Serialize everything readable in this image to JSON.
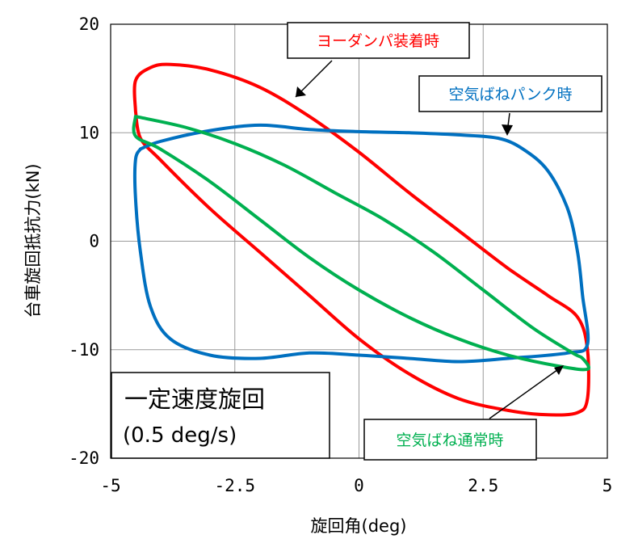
{
  "chart_data": {
    "type": "line",
    "xlabel": "旋回角(deg)",
    "ylabel": "台車旋回抵抗力(kN)",
    "xlim": [
      -5,
      5
    ],
    "ylim": [
      -20,
      20
    ],
    "x_ticks": [
      "-5",
      "-2.5",
      "0",
      "2.5",
      "5"
    ],
    "y_ticks": [
      "20",
      "10",
      "0",
      "-10",
      "-20"
    ],
    "grid": true,
    "condition_box": {
      "title": "一定速度旋回",
      "subtitle": "(0.5 deg/s)"
    },
    "series": [
      {
        "name": "ヨーダンパ装着時",
        "color": "#ff0000",
        "points": [
          [
            -4.5,
            12
          ],
          [
            -4.5,
            14.8
          ],
          [
            -4.2,
            16
          ],
          [
            -3.8,
            16.3
          ],
          [
            -3.0,
            15.8
          ],
          [
            -2.0,
            14.2
          ],
          [
            -1.0,
            11.5
          ],
          [
            0.0,
            8.2
          ],
          [
            1.0,
            4.5
          ],
          [
            2.0,
            1.0
          ],
          [
            3.0,
            -2.5
          ],
          [
            3.8,
            -5.0
          ],
          [
            4.4,
            -7.0
          ],
          [
            4.6,
            -10.0
          ],
          [
            4.6,
            -14.5
          ],
          [
            4.4,
            -15.8
          ],
          [
            3.8,
            -16.0
          ],
          [
            3.0,
            -15.6
          ],
          [
            2.0,
            -14.5
          ],
          [
            1.0,
            -12.2
          ],
          [
            0.0,
            -9.0
          ],
          [
            -1.0,
            -5.0
          ],
          [
            -2.0,
            -1.0
          ],
          [
            -3.0,
            3.0
          ],
          [
            -4.0,
            7.5
          ],
          [
            -4.4,
            9.5
          ],
          [
            -4.5,
            12
          ]
        ]
      },
      {
        "name": "空気ばねパンク時",
        "color": "#0070c0",
        "points": [
          [
            -4.4,
            8.5
          ],
          [
            -4.0,
            9.2
          ],
          [
            -3.0,
            10.2
          ],
          [
            -2.0,
            10.7
          ],
          [
            -1.0,
            10.3
          ],
          [
            0.0,
            10.1
          ],
          [
            1.0,
            10.0
          ],
          [
            2.0,
            9.8
          ],
          [
            2.8,
            9.5
          ],
          [
            3.3,
            8.5
          ],
          [
            3.8,
            6.5
          ],
          [
            4.2,
            3.0
          ],
          [
            4.4,
            -1.0
          ],
          [
            4.5,
            -5.0
          ],
          [
            4.6,
            -9.5
          ],
          [
            4.2,
            -10.3
          ],
          [
            3.0,
            -10.8
          ],
          [
            2.0,
            -11.1
          ],
          [
            1.0,
            -10.8
          ],
          [
            0.0,
            -10.5
          ],
          [
            -1.0,
            -10.3
          ],
          [
            -2.0,
            -10.8
          ],
          [
            -3.0,
            -10.5
          ],
          [
            -3.8,
            -9.0
          ],
          [
            -4.2,
            -6.0
          ],
          [
            -4.4,
            -1.0
          ],
          [
            -4.5,
            4.0
          ],
          [
            -4.5,
            7.5
          ],
          [
            -4.4,
            8.5
          ]
        ]
      },
      {
        "name": "空気ばね通常時",
        "color": "#00b050",
        "points": [
          [
            -4.5,
            11.5
          ],
          [
            -3.5,
            10.5
          ],
          [
            -2.5,
            9.0
          ],
          [
            -1.5,
            7.0
          ],
          [
            -0.5,
            4.5
          ],
          [
            0.5,
            2.0
          ],
          [
            1.5,
            -1.0
          ],
          [
            2.5,
            -4.5
          ],
          [
            3.5,
            -8.0
          ],
          [
            4.3,
            -10.3
          ],
          [
            4.5,
            -10.8
          ],
          [
            4.6,
            -11.8
          ],
          [
            4.0,
            -11.5
          ],
          [
            3.0,
            -10.5
          ],
          [
            2.0,
            -9.0
          ],
          [
            1.0,
            -7.0
          ],
          [
            0.0,
            -4.5
          ],
          [
            -1.0,
            -1.5
          ],
          [
            -2.0,
            2.0
          ],
          [
            -3.0,
            5.5
          ],
          [
            -4.0,
            8.5
          ],
          [
            -4.5,
            9.7
          ],
          [
            -4.5,
            11.5
          ]
        ]
      }
    ]
  }
}
